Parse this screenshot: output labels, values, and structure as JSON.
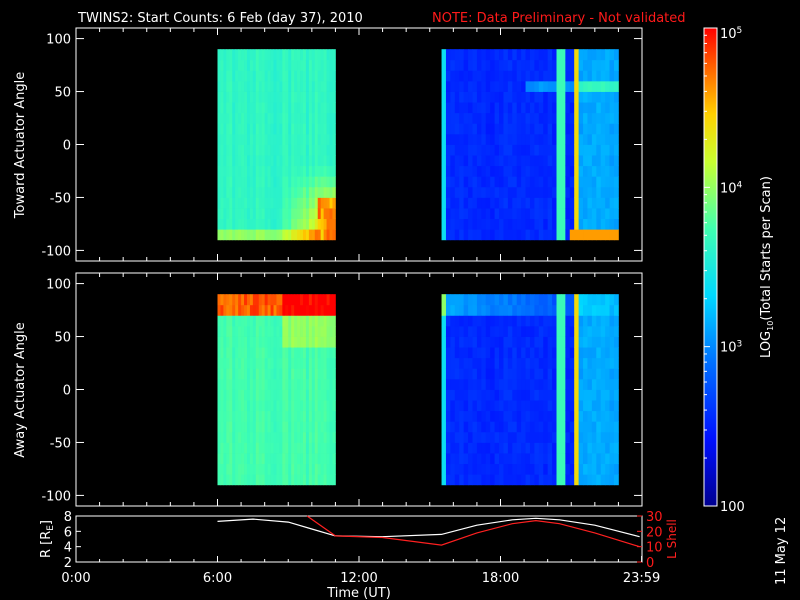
{
  "header": {
    "title": "TWINS2: Start Counts:  6 Feb (day  37), 2010",
    "note": "NOTE: Data Preliminary - Not validated"
  },
  "footer": {
    "date_stamp": "11 May 12"
  },
  "colors": {
    "background": "#000000",
    "axes": "#ffffff",
    "note": "#ff1a1a",
    "r_line": "#ffffff",
    "lshell_line": "#ff2020"
  },
  "chart_data": [
    {
      "type": "heatmap",
      "title": "",
      "ylabel": "Toward Actuator Angle",
      "xlabel": "",
      "ylim": [
        -110,
        110
      ],
      "yticks": [
        100,
        50,
        0,
        -50,
        -100
      ],
      "x_range_hours": [
        0,
        24
      ],
      "blocks": [
        {
          "x_start": "06:00",
          "x_end": "11:00",
          "y_range": [
            -90,
            90
          ],
          "log10_level": 3.6,
          "description": "mostly cyan-green, orange/red at low angles after ~09:00"
        },
        {
          "x_start": "15:30",
          "x_end": "23:00",
          "y_range": [
            -90,
            90
          ],
          "log10_level": 2.5,
          "description": "mostly blue, lighter band near 60, cyan and orange after ~20:30"
        }
      ]
    },
    {
      "type": "heatmap",
      "title": "",
      "ylabel": "Away Actuator Angle",
      "xlabel": "",
      "ylim": [
        -110,
        110
      ],
      "yticks": [
        100,
        50,
        0,
        -50,
        -100
      ],
      "x_range_hours": [
        0,
        24
      ],
      "blocks": [
        {
          "x_start": "06:00",
          "x_end": "11:00",
          "y_range": [
            -90,
            90
          ],
          "log10_level": 3.8,
          "description": "yellow-green, orange/red band near top"
        },
        {
          "x_start": "15:30",
          "x_end": "23:00",
          "y_range": [
            -90,
            90
          ],
          "log10_level": 2.5,
          "description": "mostly blue with lighter cyan at top and after ~20:30"
        }
      ]
    },
    {
      "type": "line",
      "xlabel": "Time (UT)",
      "x_ticks": [
        "0:00",
        "6:00",
        "12:00",
        "18:00",
        "23:59"
      ],
      "ylabel_left": "R [R",
      "ylabel_left_sub": "E",
      "ylabel_left_end": "]",
      "ylim_left": [
        2,
        8
      ],
      "yticks_left": [
        2,
        4,
        6,
        8
      ],
      "ylabel_right": "L Shell",
      "ylim_right": [
        0,
        30
      ],
      "yticks_right": [
        0,
        10,
        20,
        30
      ],
      "series": [
        {
          "axis": "left",
          "color": "#ffffff",
          "x": [
            6.0,
            7.5,
            9.0,
            10.0,
            11.0,
            13.0,
            15.5,
            17.0,
            18.5,
            19.5,
            20.5,
            22.0,
            23.9
          ],
          "y": [
            7.3,
            7.6,
            7.2,
            6.3,
            5.4,
            5.3,
            5.6,
            6.8,
            7.5,
            7.7,
            7.5,
            6.8,
            5.3
          ]
        },
        {
          "axis": "right",
          "color": "#ff2020",
          "x": [
            9.8,
            11.0,
            13.0,
            15.5,
            17.0,
            18.5,
            19.5,
            20.5,
            22.0,
            23.9
          ],
          "y": [
            30,
            17,
            16,
            11,
            19,
            25,
            27,
            25,
            19,
            10
          ]
        }
      ]
    },
    {
      "type": "colorbar",
      "label_pre": "LOG",
      "label_sub": "10",
      "label_post": "(Total Starts per Scan)",
      "range_log10": [
        2,
        5
      ],
      "tick_labels": [
        {
          "exp": 5,
          "text": "10",
          "sup": "5"
        },
        {
          "exp": 4,
          "text": "10",
          "sup": "4"
        },
        {
          "exp": 3,
          "text": "10",
          "sup": "3"
        },
        {
          "exp": 2,
          "text": "100",
          "sup": ""
        }
      ]
    }
  ]
}
